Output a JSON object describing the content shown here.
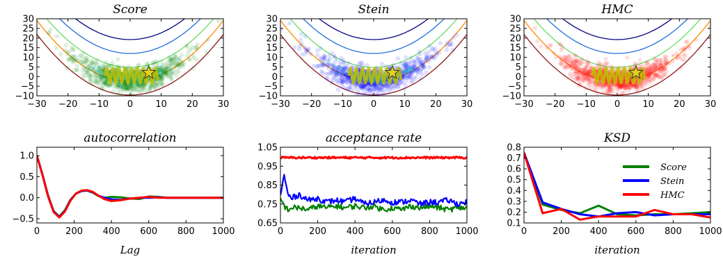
{
  "figure": {
    "background": "#ffffff"
  },
  "chart_data": [
    {
      "type": "scatter",
      "title": "Score",
      "xlim": [
        -30,
        30
      ],
      "ylim": [
        -10,
        30
      ],
      "xticks": [
        "−30",
        "−20",
        "−10",
        "0",
        "10",
        "20",
        "30"
      ],
      "yticks": [
        "−10",
        "−5",
        "0",
        "5",
        "10",
        "15",
        "20",
        "25",
        "30"
      ],
      "sample_color": "#008000",
      "trace_color": "#bfbf00",
      "star": {
        "x": 6,
        "y": 2
      },
      "contour_levels_y": [
        2,
        8,
        14,
        20,
        26
      ],
      "contour_colors": [
        "#8b1a1a",
        "#ff8c00",
        "#66dd66",
        "#1e6fdc",
        "#000080"
      ]
    },
    {
      "type": "scatter",
      "title": "Stein",
      "xlim": [
        -30,
        30
      ],
      "ylim": [
        -10,
        30
      ],
      "xticks": [
        "−30",
        "−20",
        "−10",
        "0",
        "10",
        "20",
        "30"
      ],
      "yticks": [
        "−10",
        "−5",
        "0",
        "5",
        "10",
        "15",
        "20",
        "25",
        "30"
      ],
      "sample_color": "#0000ff",
      "trace_color": "#bfbf00",
      "star": {
        "x": 6,
        "y": 2
      },
      "contour_levels_y": [
        2,
        8,
        14,
        20,
        26
      ],
      "contour_colors": [
        "#8b1a1a",
        "#ff8c00",
        "#66dd66",
        "#1e6fdc",
        "#000080"
      ]
    },
    {
      "type": "scatter",
      "title": "HMC",
      "xlim": [
        -30,
        30
      ],
      "ylim": [
        -10,
        30
      ],
      "xticks": [
        "−30",
        "−20",
        "−10",
        "0",
        "10",
        "20",
        "30"
      ],
      "yticks": [
        "−10",
        "−5",
        "0",
        "5",
        "10",
        "15",
        "20",
        "25",
        "30"
      ],
      "sample_color": "#ff0000",
      "trace_color": "#bfbf00",
      "star": {
        "x": 6,
        "y": 2
      },
      "contour_levels_y": [
        2,
        8,
        14,
        20,
        26
      ],
      "contour_colors": [
        "#8b1a1a",
        "#ff8c00",
        "#66dd66",
        "#1e6fdc",
        "#000080"
      ]
    },
    {
      "type": "line",
      "title": "autocorrelation",
      "xlabel": "Lag",
      "xlim": [
        0,
        1000
      ],
      "ylim": [
        -0.6,
        1.2
      ],
      "xticks": [
        "0",
        "200",
        "400",
        "600",
        "800",
        "1000"
      ],
      "yticks": [
        "−0.5",
        "0.0",
        "0.5",
        "1.0"
      ],
      "ytick_values": [
        -0.5,
        0.0,
        0.5,
        1.0
      ],
      "series": [
        {
          "color": "#008000",
          "x": [
            0,
            30,
            60,
            90,
            120,
            150,
            180,
            210,
            240,
            270,
            300,
            330,
            360,
            400,
            450,
            500,
            550,
            600,
            650,
            700,
            800,
            900,
            1000
          ],
          "y": [
            1.0,
            0.55,
            0.05,
            -0.32,
            -0.45,
            -0.3,
            -0.05,
            0.1,
            0.16,
            0.17,
            0.12,
            0.04,
            0.0,
            0.02,
            0.01,
            -0.02,
            -0.03,
            0.03,
            0.02,
            0.0,
            0.0,
            0.0,
            0.0
          ]
        },
        {
          "color": "#0000ff",
          "x": [
            0,
            30,
            60,
            90,
            120,
            150,
            180,
            210,
            240,
            270,
            300,
            330,
            360,
            400,
            450,
            500,
            550,
            600,
            650,
            700,
            800,
            900,
            1000
          ],
          "y": [
            1.0,
            0.55,
            0.04,
            -0.33,
            -0.46,
            -0.32,
            -0.06,
            0.1,
            0.16,
            0.17,
            0.13,
            0.05,
            0.0,
            -0.04,
            -0.05,
            -0.02,
            0.0,
            0.0,
            0.01,
            0.0,
            0.0,
            0.0,
            0.0
          ]
        },
        {
          "color": "#ff0000",
          "x": [
            0,
            30,
            60,
            90,
            120,
            150,
            180,
            210,
            240,
            270,
            300,
            330,
            360,
            400,
            450,
            500,
            550,
            600,
            650,
            700,
            800,
            900,
            1000
          ],
          "y": [
            1.0,
            0.54,
            0.03,
            -0.34,
            -0.47,
            -0.33,
            -0.07,
            0.1,
            0.17,
            0.18,
            0.14,
            0.05,
            -0.03,
            -0.08,
            -0.06,
            -0.02,
            0.0,
            0.02,
            0.0,
            0.0,
            0.0,
            0.0,
            0.0
          ]
        }
      ]
    },
    {
      "type": "line",
      "title": "acceptance rate",
      "xlabel": "iteration",
      "xlim": [
        0,
        1000
      ],
      "ylim": [
        0.65,
        1.05
      ],
      "xticks": [
        "0",
        "200",
        "400",
        "600",
        "800",
        "1000"
      ],
      "yticks": [
        "0.65",
        "0.75",
        "0.85",
        "0.95",
        "1.05"
      ],
      "ytick_values": [
        0.65,
        0.75,
        0.85,
        0.95,
        1.05
      ],
      "series": [
        {
          "color": "#008000",
          "x": [
            0,
            20,
            40,
            60,
            100,
            150,
            200,
            250,
            300,
            350,
            400,
            450,
            500,
            550,
            600,
            650,
            700,
            750,
            800,
            850,
            900,
            950,
            1000
          ],
          "y": [
            0.78,
            0.74,
            0.72,
            0.73,
            0.73,
            0.72,
            0.74,
            0.73,
            0.74,
            0.73,
            0.74,
            0.73,
            0.74,
            0.72,
            0.73,
            0.72,
            0.74,
            0.73,
            0.74,
            0.73,
            0.72,
            0.73,
            0.73
          ]
        },
        {
          "color": "#0000ff",
          "x": [
            0,
            20,
            40,
            60,
            100,
            150,
            200,
            250,
            300,
            350,
            400,
            450,
            500,
            550,
            600,
            650,
            700,
            750,
            800,
            850,
            900,
            950,
            1000
          ],
          "y": [
            0.8,
            0.9,
            0.8,
            0.78,
            0.8,
            0.77,
            0.78,
            0.76,
            0.77,
            0.76,
            0.78,
            0.75,
            0.76,
            0.77,
            0.76,
            0.76,
            0.77,
            0.75,
            0.76,
            0.76,
            0.77,
            0.75,
            0.76
          ]
        },
        {
          "color": "#ff0000",
          "x": [
            0,
            100,
            200,
            300,
            400,
            500,
            600,
            700,
            800,
            900,
            1000
          ],
          "y": [
            0.995,
            0.995,
            0.995,
            0.995,
            0.995,
            0.995,
            0.995,
            0.995,
            0.995,
            0.995,
            0.995
          ]
        }
      ]
    },
    {
      "type": "line",
      "title": "KSD",
      "xlabel": "iteration",
      "xlim": [
        0,
        1000
      ],
      "ylim": [
        0.1,
        0.8
      ],
      "xticks": [
        "0",
        "200",
        "400",
        "600",
        "800",
        "1000"
      ],
      "yticks": [
        "0.1",
        "0.2",
        "0.3",
        "0.4",
        "0.5",
        "0.6",
        "0.7",
        "0.8"
      ],
      "ytick_values": [
        0.1,
        0.2,
        0.3,
        0.4,
        0.5,
        0.6,
        0.7,
        0.8
      ],
      "legend": {
        "position": "upper-right"
      },
      "series": [
        {
          "name": "Score",
          "color": "#008000",
          "x": [
            0,
            100,
            200,
            300,
            400,
            500,
            600,
            700,
            800,
            900,
            1000
          ],
          "y": [
            0.75,
            0.27,
            0.22,
            0.19,
            0.26,
            0.18,
            0.17,
            0.18,
            0.18,
            0.19,
            0.2
          ]
        },
        {
          "name": "Stein",
          "color": "#0000ff",
          "x": [
            0,
            100,
            200,
            300,
            400,
            500,
            600,
            700,
            800,
            900,
            1000
          ],
          "y": [
            0.75,
            0.29,
            0.23,
            0.18,
            0.16,
            0.19,
            0.2,
            0.17,
            0.18,
            0.18,
            0.18
          ]
        },
        {
          "name": "HMC",
          "color": "#ff0000",
          "x": [
            0,
            100,
            200,
            300,
            400,
            500,
            600,
            700,
            800,
            900,
            1000
          ],
          "y": [
            0.75,
            0.19,
            0.23,
            0.13,
            0.16,
            0.16,
            0.16,
            0.22,
            0.18,
            0.18,
            0.15
          ]
        }
      ]
    }
  ]
}
